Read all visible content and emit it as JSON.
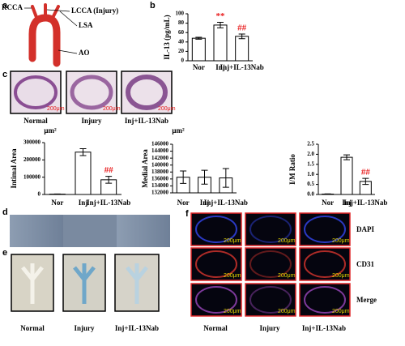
{
  "panels": {
    "a": {
      "label": "a",
      "parts": [
        "RCCA",
        "LCCA (Injury)",
        "LSA",
        "AO"
      ]
    },
    "b": {
      "label": "b"
    },
    "c": {
      "label": "c",
      "images": [
        "Normal",
        "Injury",
        "Inj+IL-13Nab"
      ],
      "scale_bars": [
        "200μm",
        "200μm",
        "200μm"
      ]
    },
    "d": {
      "label": "d"
    },
    "e": {
      "label": "e",
      "images": [
        "Normal",
        "Injury",
        "Inj+IL-13Nab"
      ]
    },
    "f": {
      "label": "f",
      "rows": [
        "DAPI",
        "CD31",
        "Merge"
      ],
      "columns": [
        "Normal",
        "Injury",
        "Inj+IL-13Nab"
      ],
      "scale_bars": [
        "200μm",
        "200μm",
        "200μm",
        "200μm",
        "200μm",
        "200μm",
        "200μm",
        "200μm",
        "200μm"
      ]
    }
  },
  "chart_data": [
    {
      "type": "bar",
      "y_label": "IL-13 (pg/mL)",
      "categories": [
        "Nor",
        "Inj",
        "Inj+IL-13Nab"
      ],
      "values": [
        48,
        76,
        52
      ],
      "errors": [
        2,
        6,
        5
      ],
      "color": "#ffffff",
      "ylim": [
        0,
        100
      ],
      "yticks": [
        0,
        20,
        40,
        60,
        80,
        100
      ],
      "annotations": [
        {
          "category": "Inj",
          "text": "**"
        },
        {
          "category": "Inj+IL-13Nab",
          "text": "##"
        }
      ],
      "annotation_color": "#e8191a"
    },
    {
      "type": "bar",
      "y_label": "Intimal Area",
      "unit": "μm²",
      "categories": [
        "Nor",
        "Inj",
        "Inj+IL-13Nab"
      ],
      "values": [
        2000,
        245000,
        85000
      ],
      "errors": [
        1000,
        20000,
        20000
      ],
      "color": "#ffffff",
      "ylim": [
        0,
        300000
      ],
      "yticks": [
        0,
        100000,
        200000,
        300000
      ],
      "annotations": [
        {
          "category": "Inj+IL-13Nab",
          "text": "##"
        }
      ],
      "annotation_color": "#e8191a"
    },
    {
      "type": "bar",
      "y_label": "Medial Area",
      "unit": "μm²",
      "categories": [
        "Nor",
        "Inj",
        "Inj+IL-13Nab"
      ],
      "values": [
        136500,
        136500,
        136300
      ],
      "errors": [
        1800,
        2000,
        2700
      ],
      "color": "#ffffff",
      "ylim": [
        132000,
        146000
      ],
      "yticks": [
        132000,
        134000,
        136000,
        138000,
        140000,
        142000,
        144000,
        146000
      ]
    },
    {
      "type": "bar",
      "y_label": "I/M Ratio",
      "categories": [
        "Nor",
        "Inj",
        "Inj+IL-13Nab"
      ],
      "values": [
        0.02,
        1.85,
        0.65
      ],
      "errors": [
        0.01,
        0.12,
        0.15
      ],
      "color": "#ffffff",
      "ylim": [
        0,
        2.5
      ],
      "yticks": [
        {
          "value": 0,
          "label": "0.0"
        },
        {
          "value": 0.5,
          "label": "0.5"
        },
        {
          "value": 1,
          "label": "1.0"
        },
        {
          "value": 1.5,
          "label": "1.5"
        },
        {
          "value": 2,
          "label": "2.0"
        },
        {
          "value": 2.5,
          "label": "2.5"
        }
      ],
      "annotations": [
        {
          "category": "Inj+IL-13Nab",
          "text": "##"
        }
      ],
      "annotation_color": "#e8191a"
    }
  ]
}
